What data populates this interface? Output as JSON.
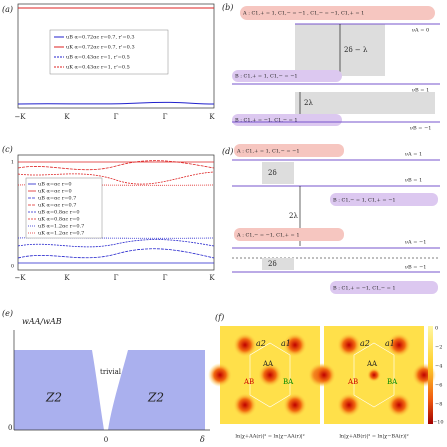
{
  "panels": {
    "a": {
      "label": "(a)",
      "xticks": [
        "−K",
        "K",
        "Γ",
        "Γ",
        "K"
      ],
      "legend": [
        "uB α=0.72αc r=0.7, r'=0.3",
        "uK α=0.72αc r=0.7, r'=0.3",
        "uB α=0.43αc r=1, r'=0.5",
        "uK α=0.43αc r=1, r'=0.5"
      ]
    },
    "b": {
      "label": "(b)",
      "texts": [
        "A : C1,+ = 1, C1,− = −1 , C1,− = −1, C1,+ = 1",
        "νA = 0",
        "2δ − λ",
        "B : C1,+ = 1, C1,− = −1",
        "νB = 1",
        "2λ",
        "B : C1,+ = −1, C1,− = 1",
        "νB = −1"
      ]
    },
    "c": {
      "label": "(c)",
      "yticks": [
        "1",
        "0"
      ],
      "xticks": [
        "−K",
        "K",
        "Γ",
        "Γ",
        "K"
      ],
      "legend": [
        "uB α=αc r=0",
        "uK α=αc r=0",
        "uB α=αc r=0.7",
        "uK α=αc r=0.7",
        "uB α=0.8αc r=0",
        "uK α=0.8αc r=0",
        "uB α=1.2αc r=0.7",
        "uK α=1.2αc r=0.7"
      ]
    },
    "d": {
      "label": "(d)",
      "texts": [
        "A : C1,+ = 1, C1,− = −1",
        "νA = 1",
        "2δ",
        "νB = 1",
        "2λ",
        "B : C1,− = 1, C1,+ = −1",
        "A : C1,− = −1, C1,+ = 1",
        "νA = −1",
        "2δ",
        "νB = −1",
        "B : C1,+ = −1, C1,− = 1"
      ]
    },
    "e": {
      "label": "(e)",
      "ylabel": "wAA/wAB",
      "region_trivial": "trivial",
      "region_left": "Z2",
      "region_right": "Z2",
      "origin_y": "0",
      "origin_x": "0",
      "xlabel": "δ"
    },
    "f": {
      "label": "(f)",
      "map_labels": [
        "a2",
        "a1",
        "AA",
        "AB",
        "BA"
      ],
      "colorbar": [
        "0",
        "−2",
        "−4",
        "−6",
        "−8",
        "−10"
      ],
      "captions": [
        "ln|χ+AA(r)|² = ln|χ−AA(r)|²",
        "ln|χ+AB(r)|² = ln|χ−BA(r)|²"
      ]
    }
  }
}
